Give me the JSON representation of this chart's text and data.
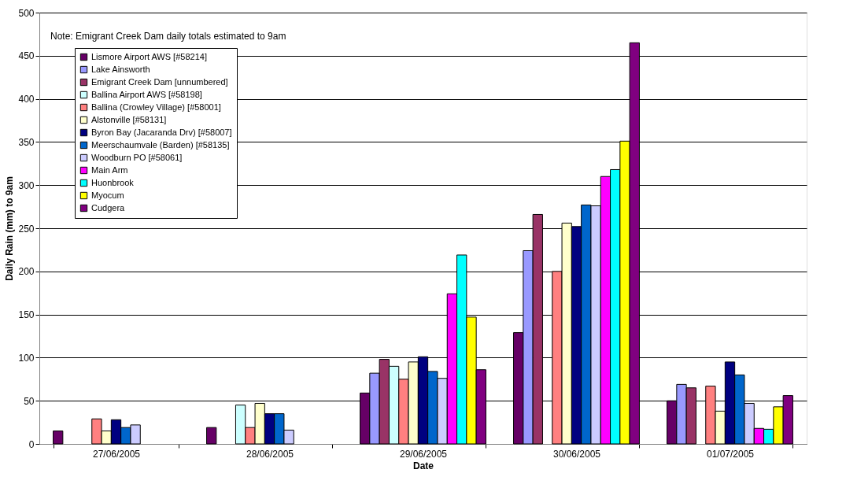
{
  "chart_data": {
    "type": "bar",
    "xlabel": "Date",
    "ylabel": "Daily Rain (mm) to 9am",
    "annotations": [
      "Note: Emigrant Creek Dam daily totals estimated to 9am"
    ],
    "categories": [
      "27/06/2005",
      "28/06/2005",
      "29/06/2005",
      "30/06/2005",
      "01/07/2005"
    ],
    "ylim": [
      0,
      500
    ],
    "yticks": [
      0,
      50,
      100,
      150,
      200,
      250,
      300,
      350,
      400,
      450,
      500
    ],
    "grid": "y",
    "legend": "top left",
    "series": [
      {
        "name": "Lismore Airport AWS [#58214]",
        "color": "#660066",
        "values": [
          15,
          19,
          59,
          129,
          50
        ]
      },
      {
        "name": "Lake Ainsworth",
        "color": "#9999ff",
        "values": [
          null,
          null,
          82,
          224,
          69
        ]
      },
      {
        "name": "Emigrant Creek Dam [unnumbered]",
        "color": "#993366",
        "values": [
          null,
          null,
          98,
          266,
          65
        ]
      },
      {
        "name": "Ballina Airport AWS [#58198]",
        "color": "#ccffff",
        "values": [
          null,
          45,
          90,
          null,
          null
        ]
      },
      {
        "name": "Ballina (Crowley Village) [#58001]",
        "color": "#ff8080",
        "values": [
          29,
          19,
          75,
          200,
          67
        ]
      },
      {
        "name": "Alstonville [#58131]",
        "color": "#ffffcc",
        "values": [
          15,
          47,
          95,
          256,
          38
        ]
      },
      {
        "name": "Byron Bay (Jacaranda Drv) [#58007]",
        "color": "#000080",
        "values": [
          28,
          35,
          101,
          252,
          95
        ]
      },
      {
        "name": "Meerschaumvale (Barden) [#58135]",
        "color": "#0066cc",
        "values": [
          19,
          35,
          84,
          277,
          80
        ]
      },
      {
        "name": "Woodburn PO [#58061]",
        "color": "#ccccff",
        "values": [
          22,
          16,
          76,
          276,
          47
        ]
      },
      {
        "name": "Main Arm",
        "color": "#ff00ff",
        "values": [
          null,
          null,
          174,
          310,
          18
        ]
      },
      {
        "name": "Huonbrook",
        "color": "#00ffff",
        "values": [
          null,
          null,
          219,
          318,
          17
        ]
      },
      {
        "name": "Myocum",
        "color": "#ffff00",
        "values": [
          null,
          null,
          147,
          351,
          43
        ]
      },
      {
        "name": "Cudgera",
        "color": "#800080",
        "values": [
          null,
          null,
          86,
          465,
          56
        ]
      }
    ]
  }
}
